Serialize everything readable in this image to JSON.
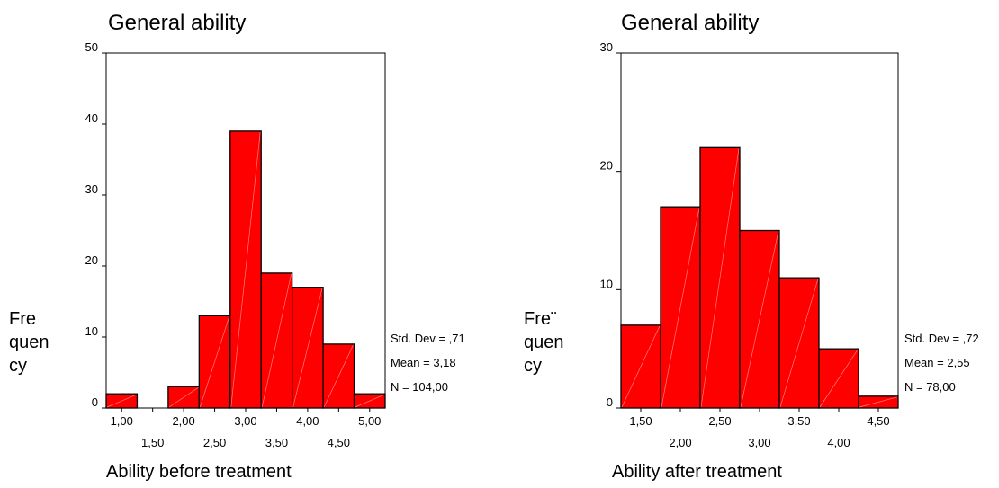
{
  "chart_data": [
    {
      "type": "bar",
      "title": "General ability",
      "xlabel": "Ability before treatment",
      "ylabel": [
        "Fre",
        "quen",
        "cy"
      ],
      "ylim": [
        0,
        50
      ],
      "yticks": [
        "0",
        "10",
        "20",
        "30",
        "40",
        "50"
      ],
      "categories": [
        "1,00",
        "1,50",
        "2,00",
        "2,50",
        "3,00",
        "3,50",
        "4,00",
        "4,50",
        "5,00"
      ],
      "values": [
        2,
        0,
        3,
        13,
        39,
        19,
        17,
        9,
        2
      ],
      "stats": [
        "Std. Dev = ,71",
        "Mean = 3,18",
        "N = 104,00"
      ],
      "bar_color": "#ff0000",
      "grid": false
    },
    {
      "type": "bar",
      "title": "General ability",
      "xlabel": "Ability after treatment",
      "ylabel": [
        "Fre¨",
        "quen",
        "cy"
      ],
      "ylim": [
        0,
        30
      ],
      "yticks": [
        "0",
        "10",
        "20",
        "30"
      ],
      "categories": [
        "1,50",
        "2,00",
        "2,50",
        "3,00",
        "3,50",
        "4,00",
        "4,50"
      ],
      "values": [
        7,
        17,
        22,
        15,
        11,
        5,
        1
      ],
      "stats": [
        "Std. Dev = ,72",
        "Mean = 2,55",
        "N = 78,00"
      ],
      "bar_color": "#ff0000",
      "grid": false
    }
  ]
}
